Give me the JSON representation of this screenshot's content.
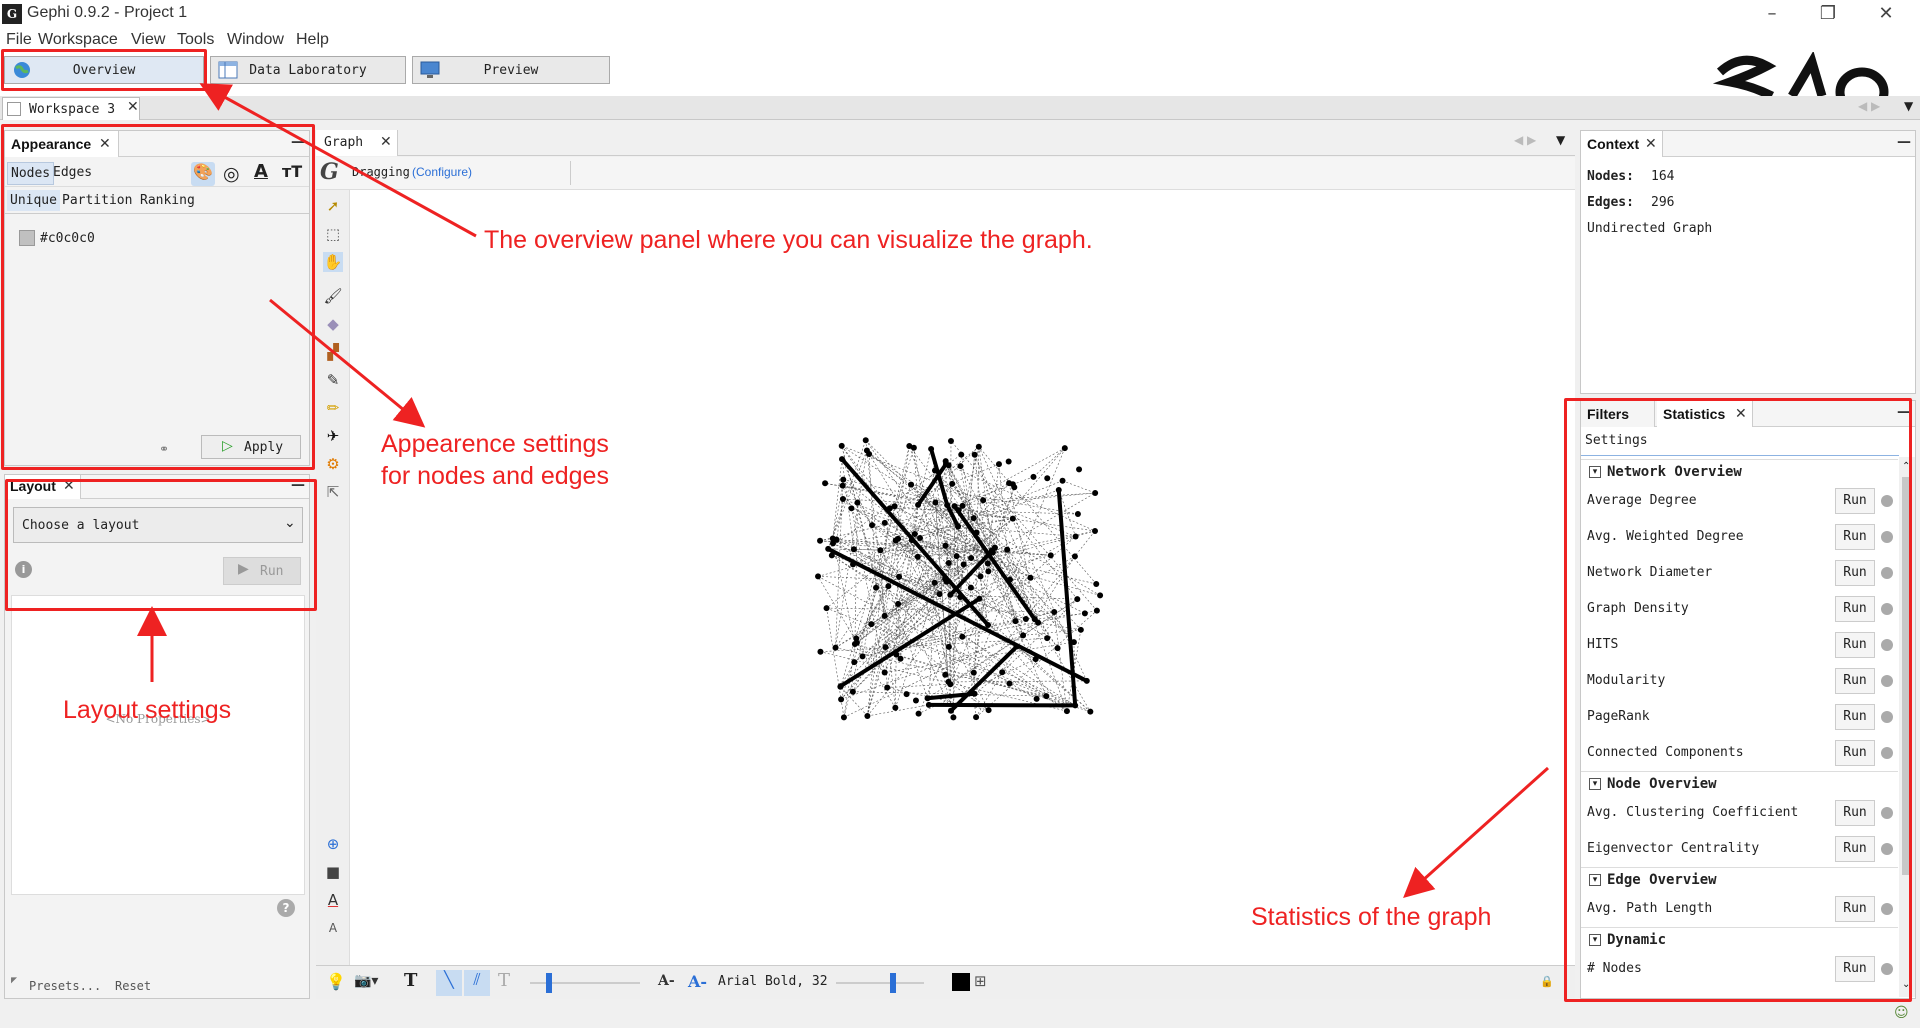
{
  "window": {
    "title": "Gephi 0.9.2 - Project 1",
    "icon": "gephi-logo-icon",
    "min": "–",
    "max": "❐",
    "close": "✕"
  },
  "menu": [
    "File",
    "Workspace",
    "View",
    "Tools",
    "Window",
    "Help"
  ],
  "modes": {
    "overview": "Overview",
    "data_lab": "Data Laboratory",
    "preview": "Preview"
  },
  "workspace_tab": "Workspace 3",
  "appearance": {
    "title": "Appearance",
    "tabs": [
      "Nodes",
      "Edges"
    ],
    "subtabs": [
      "Unique",
      "Partition",
      "Ranking"
    ],
    "color_value": "#c0c0c0",
    "apply": "Apply",
    "attr_icons": [
      "palette-icon",
      "size-icon",
      "label-color-icon",
      "label-size-icon"
    ]
  },
  "layout": {
    "title": "Layout",
    "select": "Choose a layout",
    "run": "Run",
    "no_props": "<No Properties>",
    "presets": "Presets...",
    "reset": "Reset"
  },
  "graph": {
    "title": "Graph",
    "dragging": "Dragging",
    "configure": "(Configure)",
    "font": "Arial Bold, 32",
    "font_dec": "A-",
    "font_inc": "A-"
  },
  "context": {
    "title": "Context",
    "nodes_label": "Nodes:",
    "nodes": "164",
    "edges_label": "Edges:",
    "edges": "296",
    "graph_type": "Undirected Graph"
  },
  "statistics": {
    "tabs": [
      "Filters",
      "Statistics"
    ],
    "settings": "Settings",
    "run_label": "Run",
    "sections": [
      {
        "title": "Network Overview",
        "items": [
          "Average Degree",
          "Avg. Weighted Degree",
          "Network Diameter",
          "Graph Density",
          "HITS",
          "Modularity",
          "PageRank",
          "Connected Components"
        ]
      },
      {
        "title": "Node Overview",
        "items": [
          "Avg. Clustering Coefficient",
          "Eigenvector Centrality"
        ]
      },
      {
        "title": "Edge Overview",
        "items": [
          "Avg. Path Length"
        ]
      },
      {
        "title": "Dynamic",
        "items": [
          "# Nodes"
        ]
      }
    ]
  },
  "annotations": {
    "overview": "The overview panel where you can visualize the graph.",
    "appearance_1": "Appearence settings",
    "appearance_2": "for nodes and edges",
    "layout": "Layout settings",
    "statistics": "Statistics of the graph"
  },
  "colors": {
    "annotation": "#ee2222",
    "accent": "#2b6fd6"
  }
}
